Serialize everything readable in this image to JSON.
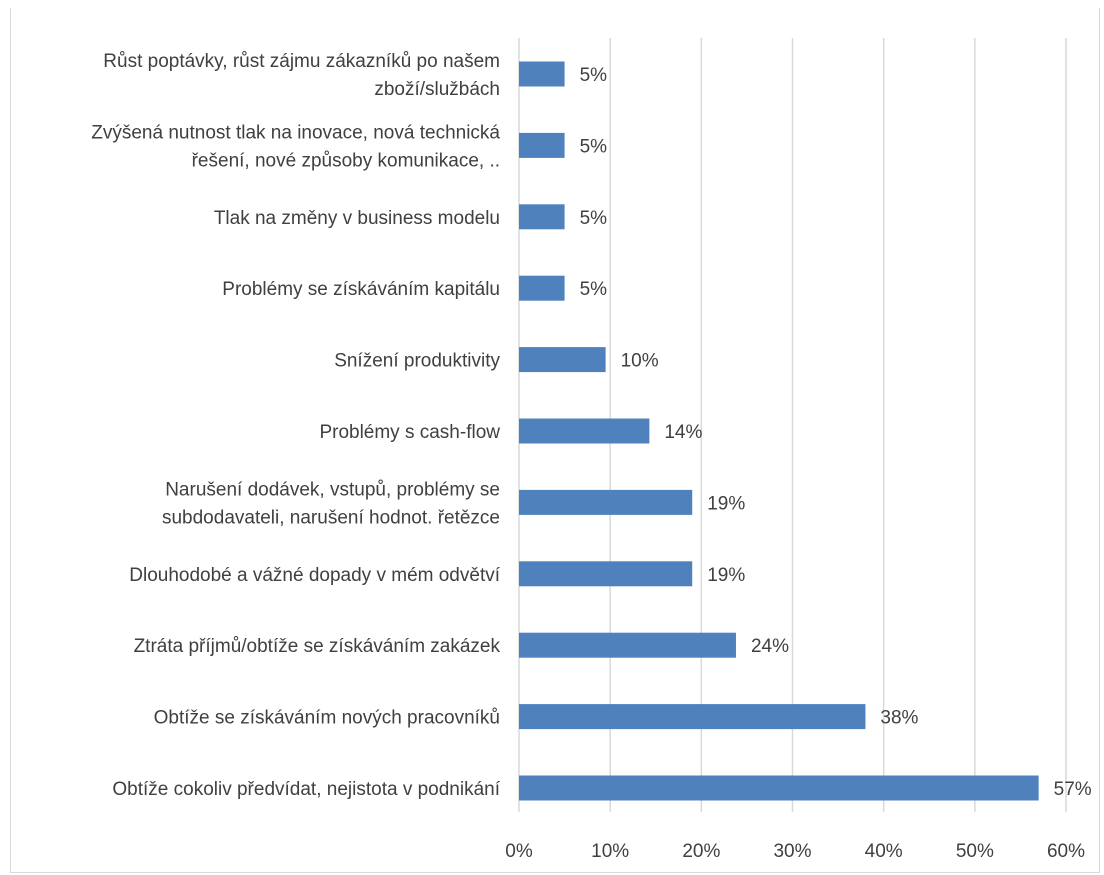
{
  "chart_data": {
    "type": "bar",
    "orientation": "horizontal",
    "title": "",
    "xlabel": "",
    "ylabel": "",
    "xlim": [
      0,
      0.6
    ],
    "x_ticks": [
      "0%",
      "10%",
      "20%",
      "30%",
      "40%",
      "50%",
      "60%"
    ],
    "grid": true,
    "bar_color": "#4f81bd",
    "categories": [
      [
        "Růst poptávky, růst zájmu zákazníků po našem",
        "zboží/službách"
      ],
      [
        "Zvýšená nutnost tlak na inovace, nová technická",
        "řešení, nové způsoby komunikace, .."
      ],
      [
        "Tlak na změny v business modelu"
      ],
      [
        "Problémy se získáváním kapitálu"
      ],
      [
        "Snížení produktivity"
      ],
      [
        "Problémy s cash-flow"
      ],
      [
        "Narušení dodávek, vstupů, problémy se",
        "subdodavateli, narušení hodnot. řetězce"
      ],
      [
        "Dlouhodobé a vážné dopady v mém odvětví"
      ],
      [
        "Ztráta příjmů/obtíže se získáváním zakázek"
      ],
      [
        "Obtíže se získáváním nových pracovníků"
      ],
      [
        "Obtíže cokoliv předvídat, nejistota v podnikání"
      ]
    ],
    "values": [
      0.05,
      0.05,
      0.05,
      0.05,
      0.095,
      0.143,
      0.19,
      0.19,
      0.238,
      0.38,
      0.57
    ],
    "data_labels": [
      "5%",
      "5%",
      "5%",
      "5%",
      "10%",
      "14%",
      "19%",
      "19%",
      "24%",
      "38%",
      "57%"
    ]
  }
}
